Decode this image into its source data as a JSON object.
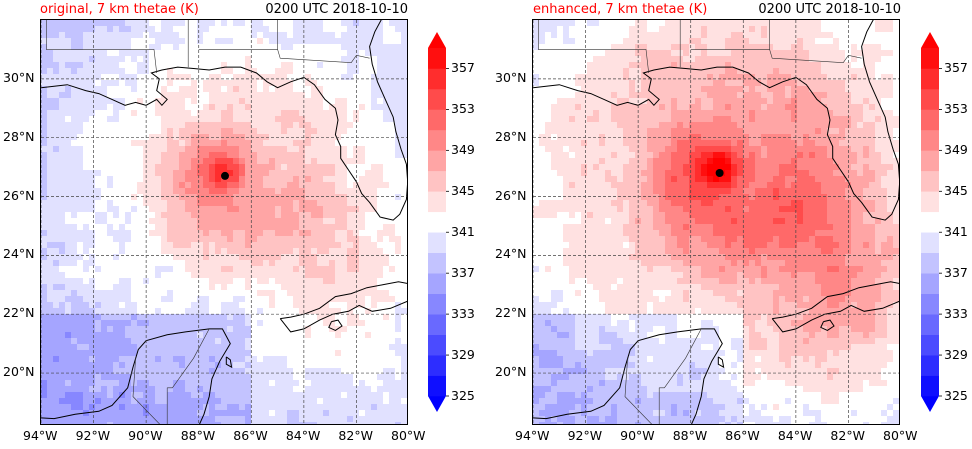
{
  "chart_data": [
    {
      "type": "heatmap",
      "panel": "left",
      "title_left": "original, 7 km thetae (K)",
      "title_right": "0200 UTC 2018-10-10",
      "variable": "equivalent potential temperature at 7 km",
      "units": "K",
      "x_ticks": [
        "94°W",
        "92°W",
        "90°W",
        "88°W",
        "86°W",
        "84°W",
        "82°W",
        "80°W"
      ],
      "x_tick_values": [
        -94,
        -92,
        -90,
        -88,
        -86,
        -84,
        -82,
        -80
      ],
      "y_ticks": [
        "30°N",
        "28°N",
        "26°N",
        "24°N",
        "22°N",
        "20°N"
      ],
      "y_tick_values": [
        30,
        28,
        26,
        24,
        22,
        20
      ],
      "xlim": [
        -94,
        -80
      ],
      "ylim": [
        18.2,
        32
      ],
      "grid": true,
      "storm_center": {
        "lon": -87.0,
        "lat": 26.7
      },
      "peak_value_approx": 357,
      "colorbar": {
        "levels": [
          325,
          327,
          329,
          331,
          333,
          335,
          337,
          339,
          341,
          343,
          345,
          347,
          349,
          351,
          353,
          355,
          357,
          359
        ],
        "tick_labels": [
          "325",
          "329",
          "333",
          "337",
          "341",
          "345",
          "349",
          "353",
          "357"
        ],
        "extend": "both",
        "cmap": "bwr"
      }
    },
    {
      "type": "heatmap",
      "panel": "right",
      "title_left": "enhanced, 7 km thetae (K)",
      "title_right": "0200 UTC 2018-10-10",
      "variable": "equivalent potential temperature at 7 km",
      "units": "K",
      "x_ticks": [
        "94°W",
        "92°W",
        "90°W",
        "88°W",
        "86°W",
        "84°W",
        "82°W",
        "80°W"
      ],
      "x_tick_values": [
        -94,
        -92,
        -90,
        -88,
        -86,
        -84,
        -82,
        -80
      ],
      "y_ticks": [
        "30°N",
        "28°N",
        "26°N",
        "24°N",
        "22°N",
        "20°N"
      ],
      "y_tick_values": [
        30,
        28,
        26,
        24,
        22,
        20
      ],
      "xlim": [
        -94,
        -80
      ],
      "ylim": [
        18.2,
        32
      ],
      "grid": true,
      "storm_center": {
        "lon": -86.9,
        "lat": 26.8
      },
      "peak_value_approx": 359,
      "colorbar": {
        "levels": [
          325,
          327,
          329,
          331,
          333,
          335,
          337,
          339,
          341,
          343,
          345,
          347,
          349,
          351,
          353,
          355,
          357,
          359
        ],
        "tick_labels": [
          "325",
          "329",
          "333",
          "337",
          "341",
          "345",
          "349",
          "353",
          "357"
        ],
        "extend": "both",
        "cmap": "bwr"
      }
    }
  ],
  "colors": {
    "title_accent": "#ff0000",
    "cmap_low": "#0000ff",
    "cmap_mid": "#ffffff",
    "cmap_high": "#ff0000",
    "storm_marker": "#000000"
  }
}
